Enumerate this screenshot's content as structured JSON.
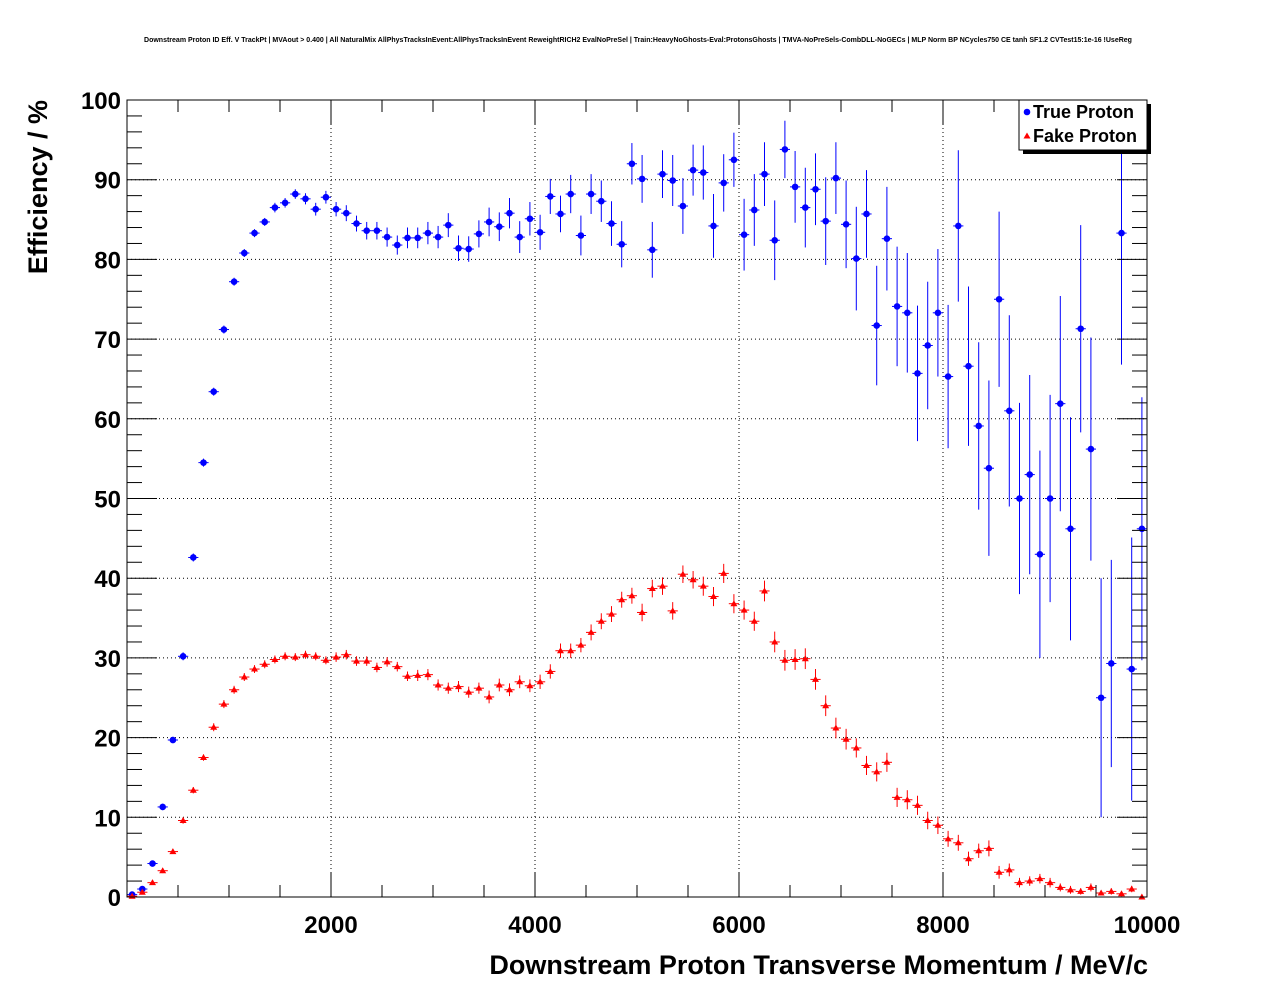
{
  "chart_data": {
    "type": "scatter",
    "title": "Downstream Proton ID Eff. V TrackPt | MVAout > 0.400 | All NaturalMix AllPhysTracksInEvent:AllPhysTracksInEvent ReweightRICH2 EvalNoPreSel | Train:HeavyNoGhosts-Eval:ProtonsGhosts | TMVA-NoPreSels-CombDLL-NoGECs | MLP Norm BP NCycles750 CE tanh SF1.2 CVTest15:1e-16 !UseReg",
    "xlabel": "Downstream Proton Transverse Momentum / MeV/c",
    "ylabel": "Efficiency / %",
    "xlim": [
      0,
      10000
    ],
    "ylim": [
      0,
      100
    ],
    "x_ticks": [
      "2000",
      "4000",
      "6000",
      "8000",
      "10000"
    ],
    "y_ticks": [
      "0",
      "10",
      "20",
      "30",
      "40",
      "50",
      "60",
      "70",
      "80",
      "90",
      "100"
    ],
    "grid": true,
    "legend_position": "top-right",
    "bin_width": 100,
    "x": [
      50,
      150,
      250,
      350,
      450,
      550,
      650,
      750,
      850,
      950,
      1050,
      1150,
      1250,
      1350,
      1450,
      1550,
      1650,
      1750,
      1850,
      1950,
      2050,
      2150,
      2250,
      2350,
      2450,
      2550,
      2650,
      2750,
      2850,
      2950,
      3050,
      3150,
      3250,
      3350,
      3450,
      3550,
      3650,
      3750,
      3850,
      3950,
      4050,
      4150,
      4250,
      4350,
      4450,
      4550,
      4650,
      4750,
      4850,
      4950,
      5050,
      5150,
      5250,
      5350,
      5450,
      5550,
      5650,
      5750,
      5850,
      5950,
      6050,
      6150,
      6250,
      6350,
      6450,
      6550,
      6650,
      6750,
      6850,
      6950,
      7050,
      7150,
      7250,
      7350,
      7450,
      7550,
      7650,
      7750,
      7850,
      7950,
      8050,
      8150,
      8250,
      8350,
      8450,
      8550,
      8650,
      8750,
      8850,
      8950,
      9050,
      9150,
      9250,
      9350,
      9450,
      9550,
      9650,
      9750,
      9850,
      9950
    ],
    "series": [
      {
        "name": "True Proton",
        "color": "#0000ff",
        "marker": "circle",
        "values": [
          0.3,
          1.0,
          4.2,
          11.3,
          19.7,
          30.2,
          42.6,
          54.5,
          63.4,
          71.2,
          77.2,
          80.8,
          83.3,
          84.7,
          86.5,
          87.1,
          88.2,
          87.6,
          86.3,
          87.8,
          86.3,
          85.8,
          84.5,
          83.6,
          83.6,
          82.8,
          81.8,
          82.7,
          82.7,
          83.3,
          82.8,
          84.3,
          81.4,
          81.3,
          83.2,
          84.7,
          84.1,
          85.8,
          82.8,
          85.1,
          83.4,
          87.9,
          85.7,
          88.2,
          83.0,
          88.2,
          87.3,
          84.5,
          81.9,
          92.0,
          90.1,
          81.2,
          90.7,
          89.9,
          86.7,
          91.2,
          90.9,
          84.2,
          89.6,
          92.5,
          83.1,
          86.2,
          90.7,
          82.4,
          93.8,
          89.1,
          86.5,
          88.8,
          84.8,
          90.2,
          84.4,
          80.1,
          85.7,
          71.7,
          82.6,
          74.1,
          73.3,
          65.7,
          69.2,
          73.3,
          65.3,
          84.2,
          66.6,
          59.1,
          53.8,
          75.0,
          61.0,
          50.0,
          53.0,
          43.0,
          50.0,
          61.9,
          46.2,
          71.3,
          56.2,
          25.0,
          29.3,
          83.3,
          28.6,
          46.2
        ],
        "errors": [
          0.1,
          0.2,
          0.3,
          0.4,
          0.4,
          0.5,
          0.5,
          0.5,
          0.5,
          0.5,
          0.5,
          0.5,
          0.5,
          0.5,
          0.6,
          0.6,
          0.6,
          0.7,
          0.8,
          0.8,
          0.9,
          1.0,
          1.0,
          1.1,
          1.1,
          1.2,
          1.2,
          1.3,
          1.3,
          1.4,
          1.4,
          1.5,
          1.6,
          1.6,
          1.7,
          1.8,
          1.8,
          1.9,
          2.0,
          2.1,
          2.2,
          2.2,
          2.3,
          2.4,
          2.5,
          2.5,
          2.6,
          2.8,
          2.9,
          2.6,
          3.0,
          3.5,
          3.0,
          3.2,
          3.5,
          3.2,
          3.4,
          4.0,
          3.6,
          3.4,
          4.5,
          4.5,
          4.0,
          5.0,
          3.6,
          4.5,
          5.0,
          4.5,
          5.5,
          4.5,
          5.5,
          6.5,
          5.5,
          7.5,
          6.5,
          7.5,
          7.5,
          8.5,
          8.0,
          8.0,
          9.0,
          9.5,
          10.0,
          10.5,
          11.0,
          11.0,
          12.0,
          12.0,
          12.5,
          13.0,
          13.0,
          13.5,
          14.0,
          13.0,
          14.0,
          15.0,
          13.0,
          16.5,
          16.5,
          16.5
        ]
      },
      {
        "name": "Fake Proton",
        "color": "#ff0000",
        "marker": "triangle",
        "values": [
          0.1,
          0.6,
          1.8,
          3.3,
          5.7,
          9.6,
          13.4,
          17.5,
          21.3,
          24.2,
          26.0,
          27.6,
          28.6,
          29.2,
          29.8,
          30.2,
          30.1,
          30.4,
          30.2,
          29.7,
          30.1,
          30.4,
          29.6,
          29.6,
          28.8,
          29.5,
          28.9,
          27.7,
          27.8,
          27.9,
          26.6,
          26.2,
          26.4,
          25.7,
          26.2,
          25.1,
          26.6,
          26.0,
          27.0,
          26.5,
          27.0,
          28.3,
          30.9,
          30.9,
          31.6,
          33.2,
          34.6,
          35.5,
          37.3,
          37.8,
          35.7,
          38.7,
          39.0,
          35.9,
          40.5,
          39.8,
          39.0,
          37.7,
          40.6,
          36.8,
          36.0,
          34.6,
          38.4,
          32.0,
          29.7,
          29.8,
          29.9,
          27.3,
          24.0,
          21.2,
          19.8,
          18.7,
          16.5,
          15.7,
          16.9,
          12.5,
          12.2,
          11.5,
          9.6,
          9.0,
          7.3,
          6.8,
          4.8,
          5.8,
          6.1,
          3.1,
          3.4,
          1.8,
          2.0,
          2.3,
          1.8,
          1.2,
          0.9,
          0.7,
          1.2,
          0.5,
          0.7,
          0.4,
          1.0,
          0.0
        ],
        "errors": [
          0.05,
          0.1,
          0.2,
          0.3,
          0.3,
          0.4,
          0.4,
          0.4,
          0.5,
          0.5,
          0.5,
          0.5,
          0.5,
          0.5,
          0.5,
          0.5,
          0.5,
          0.5,
          0.5,
          0.5,
          0.6,
          0.6,
          0.6,
          0.6,
          0.6,
          0.6,
          0.6,
          0.6,
          0.7,
          0.7,
          0.7,
          0.7,
          0.7,
          0.7,
          0.7,
          0.8,
          0.8,
          0.8,
          0.8,
          0.8,
          0.9,
          0.9,
          0.9,
          0.9,
          0.9,
          1.0,
          1.0,
          1.0,
          1.0,
          1.0,
          1.1,
          1.1,
          1.1,
          1.1,
          1.1,
          1.1,
          1.2,
          1.2,
          1.2,
          1.2,
          1.2,
          1.2,
          1.3,
          1.3,
          1.3,
          1.3,
          1.3,
          1.3,
          1.3,
          1.3,
          1.3,
          1.2,
          1.2,
          1.2,
          1.2,
          1.2,
          1.2,
          1.2,
          1.1,
          1.1,
          1.0,
          1.0,
          0.9,
          0.9,
          1.0,
          0.8,
          0.8,
          0.6,
          0.6,
          0.6,
          0.6,
          0.5,
          0.5,
          0.4,
          0.5,
          0.3,
          0.4,
          0.3,
          0.4,
          0.0
        ]
      }
    ]
  }
}
